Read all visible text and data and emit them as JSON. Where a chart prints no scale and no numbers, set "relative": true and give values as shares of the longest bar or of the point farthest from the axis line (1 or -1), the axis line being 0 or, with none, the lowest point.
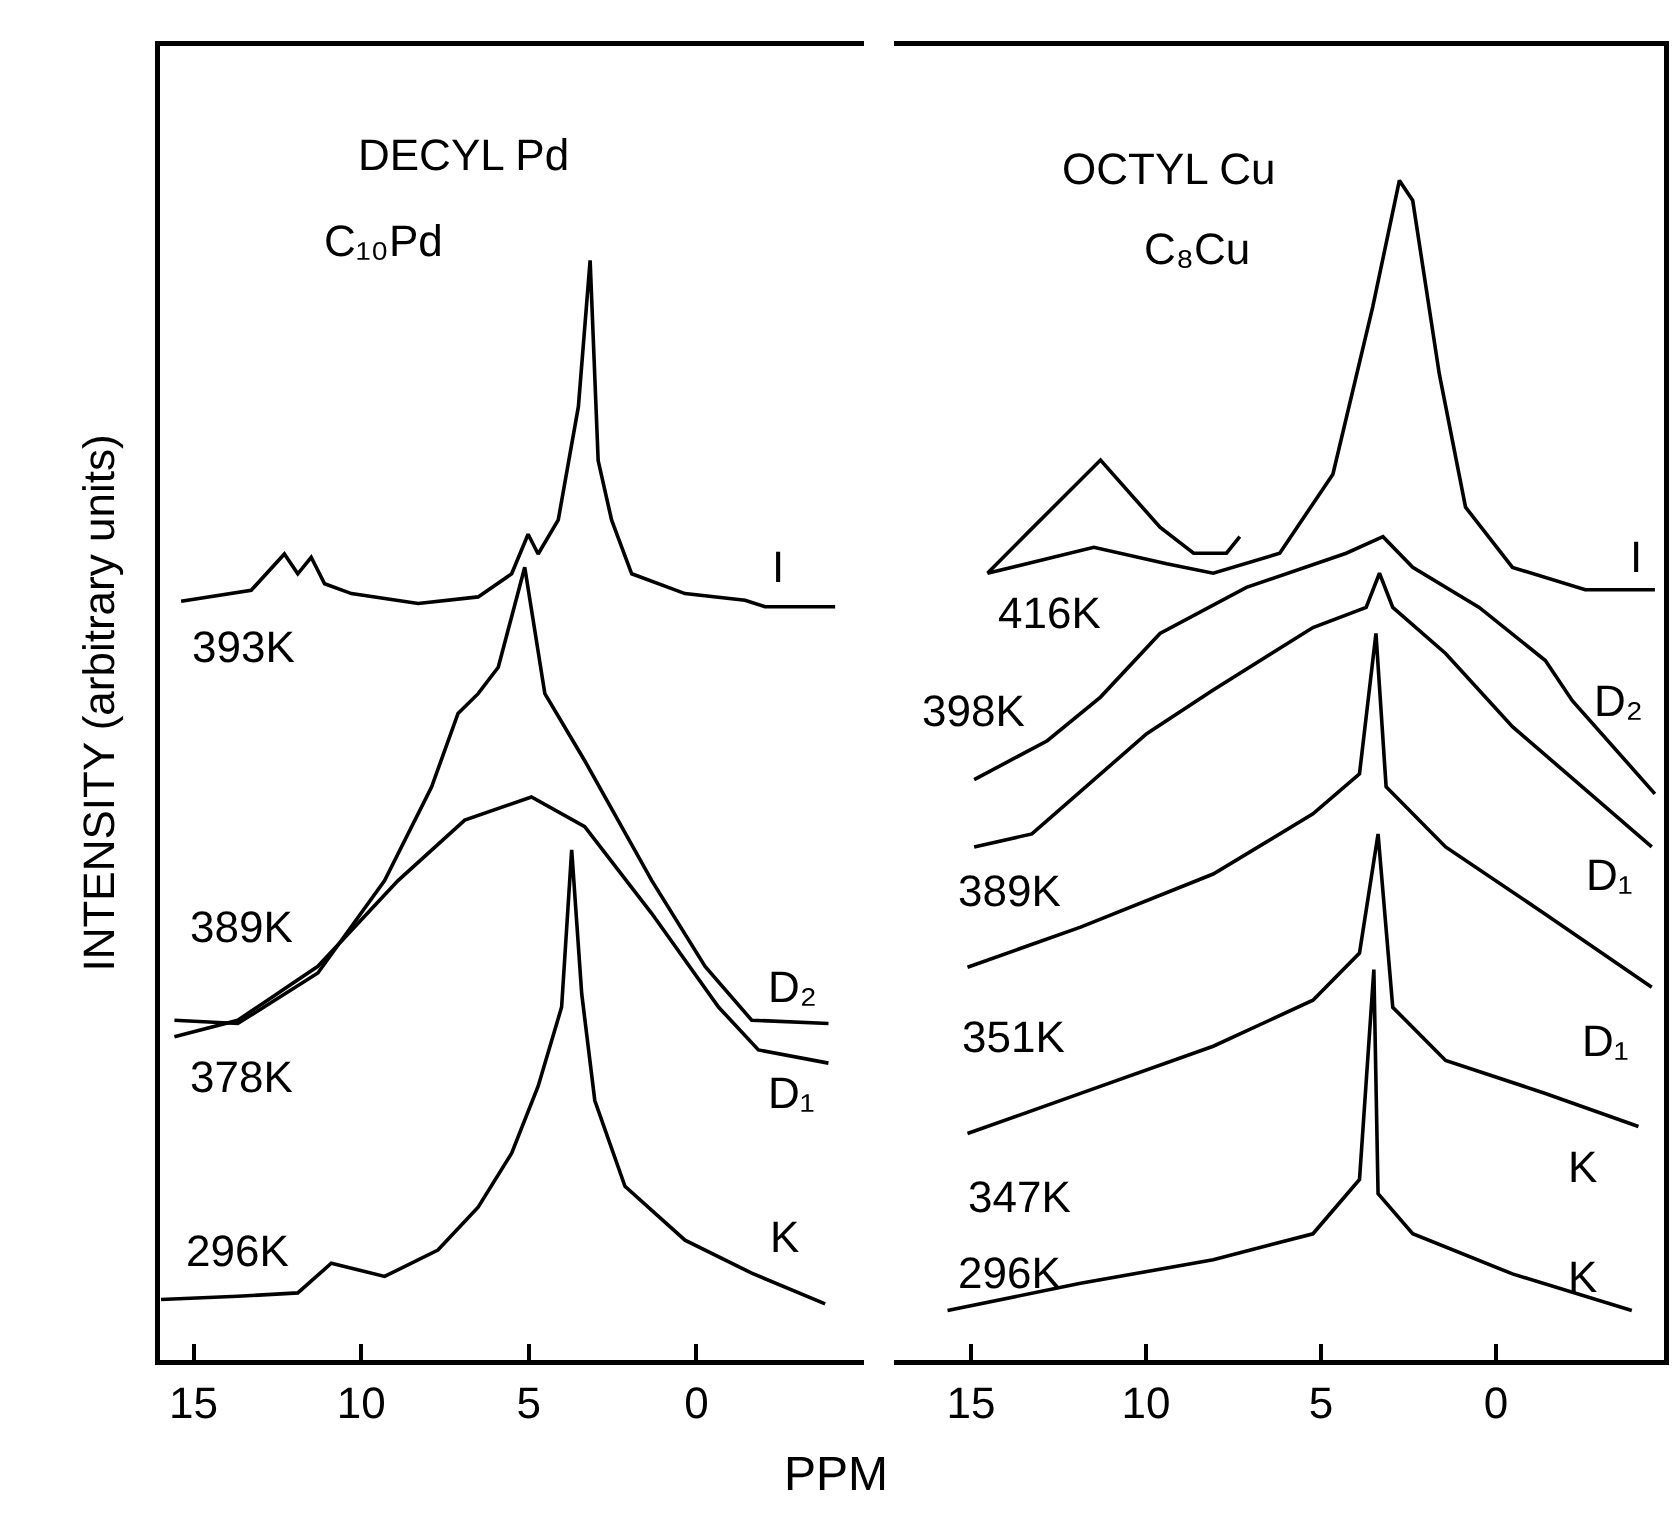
{
  "chart_data": [
    {
      "type": "line",
      "title": "DECYL Pd",
      "subtitle": "C₁₀Pd",
      "xlabel": "PPM",
      "ylabel": "INTENSITY (arbitrary units)",
      "relative": true,
      "xlim": [
        16,
        -5
      ],
      "xticks": [
        15,
        10,
        5,
        0
      ],
      "grid": false,
      "marker": "none",
      "series": [
        {
          "color": "#000000",
          "x": [
            15.37,
            13.28,
            12.29,
            11.89,
            11.49,
            11.09,
            10.29,
            8.3,
            6.51,
            5.51,
            5.02,
            4.72,
            4.12,
            3.52,
            3.17,
            2.93,
            2.53,
            1.93,
            0.34,
            -1.45,
            -2.05,
            -4.14
          ],
          "values": [
            0.69,
            0.7,
            0.733,
            0.715,
            0.73,
            0.706,
            0.697,
            0.688,
            0.694,
            0.715,
            0.751,
            0.733,
            0.764,
            0.867,
            1,
            0.818,
            0.764,
            0.715,
            0.697,
            0.691,
            0.685,
            0.685
          ]
        },
        {
          "color": "#000000",
          "x": [
            15.57,
            13.68,
            11.29,
            9.3,
            7.9,
            7.11,
            6.51,
            5.91,
            5.12,
            4.52,
            3.33,
            1.33,
            -0.26,
            -1.65,
            -3.94
          ],
          "values": [
            0.309,
            0.306,
            0.352,
            0.436,
            0.521,
            0.588,
            0.606,
            0.63,
            0.721,
            0.606,
            0.545,
            0.436,
            0.358,
            0.309,
            0.306
          ]
        },
        {
          "color": "#000000",
          "x": [
            15.57,
            13.68,
            11.29,
            8.9,
            6.91,
            4.92,
            3.33,
            1.33,
            -0.66,
            -1.85,
            -3.94
          ],
          "values": [
            0.294,
            0.309,
            0.358,
            0.436,
            0.491,
            0.512,
            0.485,
            0.406,
            0.321,
            0.282,
            0.27
          ]
        },
        {
          "color": "#000000",
          "x": [
            15.97,
            13.68,
            11.89,
            10.89,
            9.3,
            7.71,
            6.51,
            5.51,
            4.72,
            4.02,
            3.72,
            3.42,
            3.03,
            2.13,
            0.34,
            -1.65,
            -3.84
          ],
          "values": [
            0.055,
            0.058,
            0.061,
            0.088,
            0.076,
            0.1,
            0.139,
            0.188,
            0.249,
            0.321,
            0.464,
            0.333,
            0.236,
            0.158,
            0.109,
            0.079,
            0.051
          ]
        }
      ],
      "annotations": [
        "393K",
        "389K",
        "378K",
        "296K",
        "I",
        "D₂",
        "D₁",
        "K"
      ]
    },
    {
      "type": "line",
      "title": "OCTYL Cu",
      "subtitle": "C₈Cu",
      "relative": true,
      "xlim": [
        17.2,
        -4.8
      ],
      "xticks": [
        15,
        10,
        5,
        0
      ],
      "grid": false,
      "marker": "none",
      "series": [
        {
          "color": "#000000",
          "x": [
            14.53,
            11.49,
            9.41,
            8.08,
            6.18,
            4.66,
            3.52,
            2.76,
            2.38,
            1.62,
            0.87,
            -0.47,
            -2.55,
            -4.54
          ],
          "values": [
            0.667,
            0.689,
            0.675,
            0.667,
            0.684,
            0.751,
            0.893,
            1,
            0.983,
            0.836,
            0.723,
            0.672,
            0.653,
            0.653
          ]
        },
        {
          "color": "#000000",
          "x": [
            14.53,
            13.39,
            11.3,
            9.6,
            8.64,
            7.7,
            7.32
          ],
          "values": [
            0.667,
            0.701,
            0.763,
            0.706,
            0.684,
            0.684,
            0.698
          ]
        },
        {
          "color": "#000000",
          "x": [
            14.91,
            12.82,
            11.3,
            9.6,
            7.13,
            4.28,
            3.23,
            2.38,
            0.48,
            -1.41,
            -2.18,
            -4.54
          ],
          "values": [
            0.492,
            0.525,
            0.562,
            0.616,
            0.655,
            0.684,
            0.698,
            0.672,
            0.638,
            0.593,
            0.559,
            0.48
          ]
        },
        {
          "color": "#000000",
          "x": [
            14.91,
            13.26,
            9.98,
            8.08,
            5.23,
            3.71,
            3.33,
            2.95,
            1.44,
            -0.47,
            -4.45
          ],
          "values": [
            0.435,
            0.446,
            0.531,
            0.568,
            0.621,
            0.638,
            0.667,
            0.638,
            0.599,
            0.537,
            0.435
          ]
        },
        {
          "color": "#000000",
          "x": [
            15.1,
            11.87,
            8.08,
            5.23,
            3.9,
            3.43,
            3.14,
            1.44,
            -1.41,
            -4.45
          ],
          "values": [
            0.333,
            0.367,
            0.412,
            0.463,
            0.497,
            0.616,
            0.486,
            0.435,
            0.378,
            0.316
          ]
        },
        {
          "color": "#000000",
          "x": [
            15.1,
            11.87,
            8.08,
            5.23,
            3.9,
            3.37,
            2.95,
            1.44,
            -1.41,
            -4.07
          ],
          "values": [
            0.192,
            0.226,
            0.266,
            0.305,
            0.345,
            0.446,
            0.299,
            0.254,
            0.226,
            0.198
          ]
        },
        {
          "color": "#000000",
          "x": [
            15.67,
            11.87,
            8.08,
            5.23,
            3.9,
            3.49,
            3.37,
            2.38,
            -0.47,
            -3.88
          ],
          "values": [
            0.042,
            0.065,
            0.085,
            0.107,
            0.153,
            0.331,
            0.141,
            0.107,
            0.073,
            0.042
          ]
        }
      ],
      "annotations": [
        "416K",
        "398K",
        "389K",
        "351K",
        "347K",
        "296K",
        "I",
        "D₂",
        "D₁",
        "D₁",
        "K",
        "K"
      ]
    }
  ]
}
